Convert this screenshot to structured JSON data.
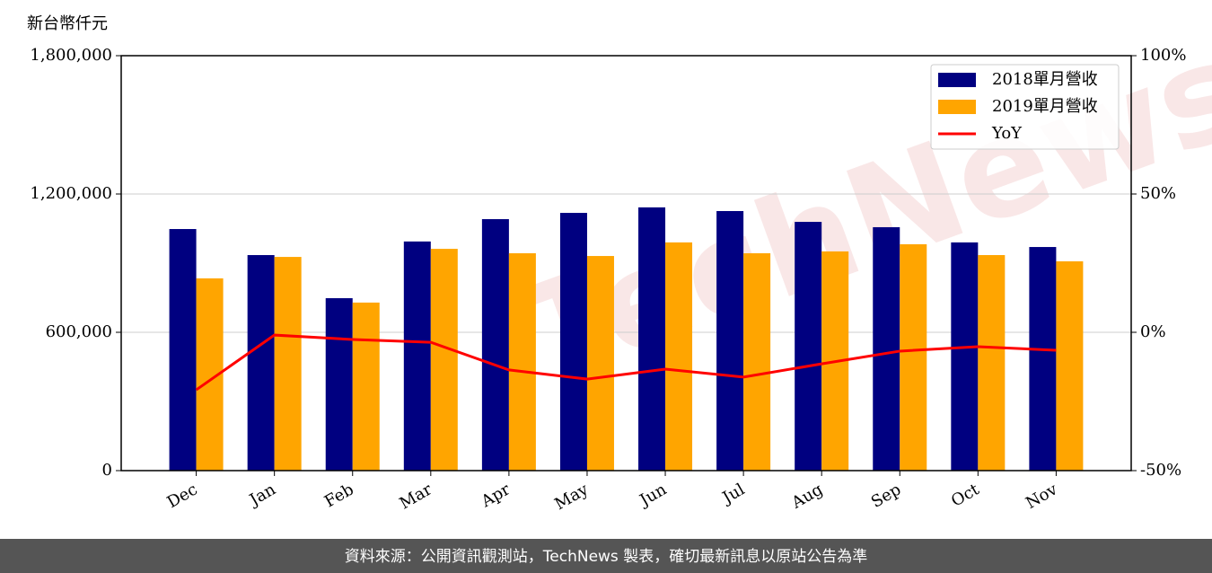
{
  "chart_data": {
    "type": "bar_line",
    "y_label": "新台幣仟元",
    "watermark": "TechNews",
    "footer": "資料來源：公開資訊觀測站，TechNews 製表，確切最新訊息以原站公告為準",
    "categories": [
      "Dec",
      "Jan",
      "Feb",
      "Mar",
      "Apr",
      "May",
      "Jun",
      "Jul",
      "Aug",
      "Sep",
      "Oct",
      "Nov"
    ],
    "series": [
      {
        "name": "2018單月營收",
        "color": "#000080",
        "kind": "bar",
        "values": [
          1048000,
          935000,
          748000,
          994000,
          1091000,
          1118000,
          1142000,
          1126000,
          1079000,
          1056000,
          990000,
          970000
        ]
      },
      {
        "name": "2019單月營收",
        "color": "#ffa500",
        "kind": "bar",
        "values": [
          834000,
          927000,
          729000,
          962000,
          943000,
          931000,
          990000,
          943000,
          951000,
          982000,
          935000,
          908000
        ]
      },
      {
        "name": "YoY",
        "color": "#ff0000",
        "kind": "line",
        "axis": "y2",
        "values": [
          -20.8,
          -1,
          -2.6,
          -3.6,
          -13.6,
          -16.9,
          -13.3,
          -16.2,
          -11.4,
          -6.8,
          -5.2,
          -6.5
        ]
      }
    ],
    "ylim": [
      0,
      1800000
    ],
    "yticks": [
      0,
      {
        "value": 600000,
        "label": "600,000"
      },
      {
        "value": 1200000,
        "label": "1,200,000"
      },
      {
        "value": 1800000,
        "label": "1,800,000"
      }
    ],
    "y2lim": [
      -50,
      100
    ],
    "y2ticks": [
      {
        "value": -50,
        "label": "-50%"
      },
      {
        "value": 0,
        "label": "0%"
      },
      {
        "value": 50,
        "label": "50%"
      },
      {
        "value": 100,
        "label": "100%"
      }
    ],
    "grid": true,
    "legend": "upper right"
  }
}
